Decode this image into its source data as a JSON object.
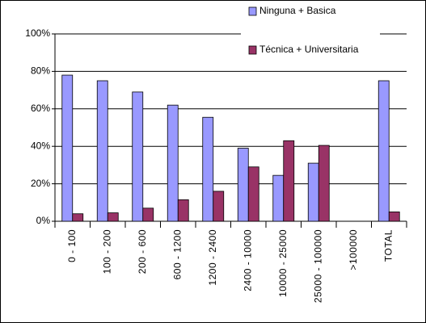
{
  "chart_data": {
    "type": "bar",
    "categories": [
      "0 - 100",
      "100 - 200",
      "200 - 600",
      "600 - 1200",
      "1200 - 2400",
      "2400 - 10000",
      "10000 - 25000",
      "25000 - 100000",
      ">100000",
      "TOTAL"
    ],
    "series": [
      {
        "name": "Ninguna + Basica",
        "color": "#9999ff",
        "values": [
          78,
          75,
          69,
          62,
          55.5,
          39,
          24.5,
          31,
          null,
          75
        ]
      },
      {
        "name": "Técnica + Universitaria",
        "color": "#993366",
        "values": [
          4,
          4.5,
          7,
          11.5,
          16,
          29,
          43,
          40.5,
          null,
          5
        ]
      }
    ],
    "ylim": [
      0,
      100
    ],
    "yticks": [
      {
        "value": 0,
        "label": "0%"
      },
      {
        "value": 20,
        "label": "20%"
      },
      {
        "value": 40,
        "label": "40%"
      },
      {
        "value": 60,
        "label": "60%"
      },
      {
        "value": 80,
        "label": "80%"
      },
      {
        "value": 100,
        "label": "100%"
      }
    ],
    "grid": true,
    "legend": "top-right"
  }
}
